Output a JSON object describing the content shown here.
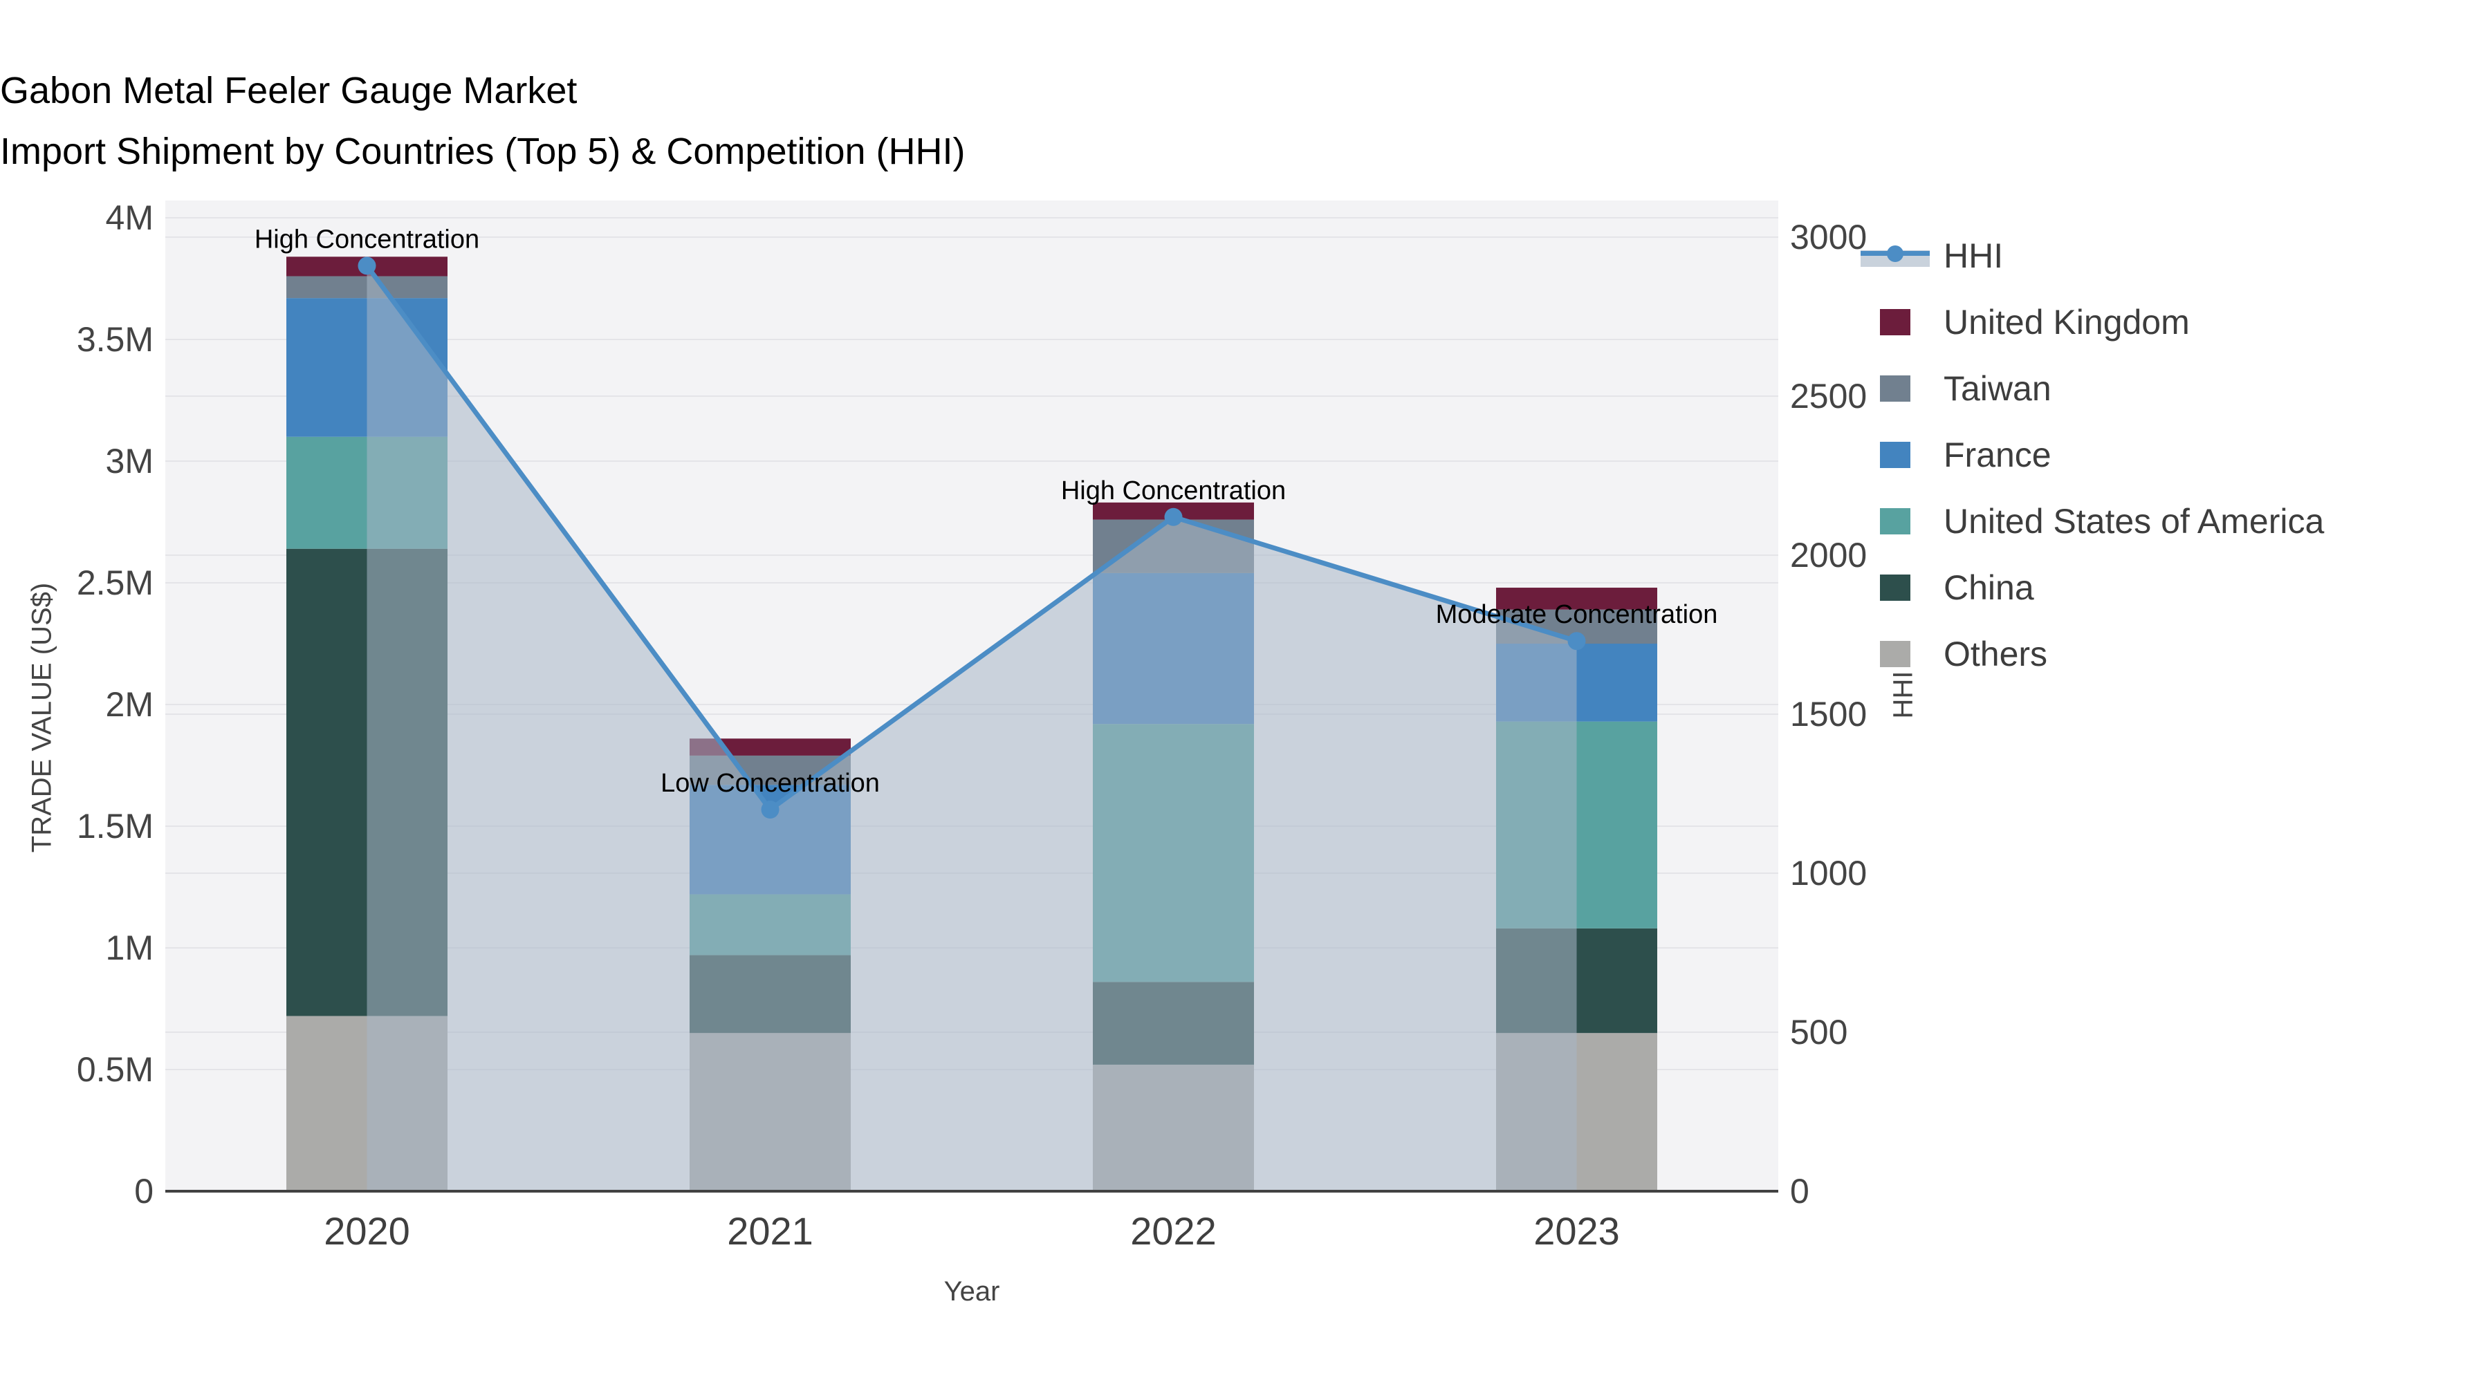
{
  "title": "Gabon Metal Feeler Gauge Market",
  "subtitle": "Import Shipment by Countries (Top 5) & Competition (HHI)",
  "axes": {
    "x_title": "Year",
    "y_left_title": "TRADE VALUE (US$)",
    "y_right_title": "HHI",
    "y_left_tick_labels": [
      "0",
      "0.5M",
      "1M",
      "1.5M",
      "2M",
      "2.5M",
      "3M",
      "3.5M",
      "4M"
    ],
    "y_left_tick_values_musd": [
      0,
      0.5,
      1,
      1.5,
      2,
      2.5,
      3,
      3.5,
      4
    ],
    "y_right_tick_labels": [
      "0",
      "500",
      "1000",
      "1500",
      "2000",
      "2500",
      "3000"
    ],
    "y_right_tick_values": [
      0,
      500,
      1000,
      1500,
      2000,
      2500,
      3000
    ]
  },
  "chart_data": {
    "type": "combo: stacked-bar + line(area)",
    "categories": [
      "2020",
      "2021",
      "2022",
      "2023"
    ],
    "unit": "million US$",
    "series": [
      {
        "name": "Others",
        "color": "#ABABA9",
        "values": [
          0.72,
          0.65,
          0.52,
          0.65
        ]
      },
      {
        "name": "China",
        "color": "#2D4F4C",
        "values": [
          1.92,
          0.32,
          0.34,
          0.43
        ]
      },
      {
        "name": "United States of America",
        "color": "#58A2A0",
        "values": [
          0.46,
          0.25,
          1.06,
          0.85
        ]
      },
      {
        "name": "France",
        "color": "#4384BF",
        "values": [
          0.57,
          0.45,
          0.62,
          0.32
        ]
      },
      {
        "name": "Taiwan",
        "color": "#71808F",
        "values": [
          0.09,
          0.12,
          0.22,
          0.14
        ]
      },
      {
        "name": "United Kingdom",
        "color": "#6C1D3C",
        "values": [
          0.08,
          0.07,
          0.07,
          0.09
        ]
      }
    ],
    "line_series": {
      "name": "HHI",
      "color": "#4C8DC5",
      "area_fill": "rgba(167,182,198,0.55)",
      "values": [
        2910,
        1200,
        2120,
        1730
      ]
    },
    "annotations": [
      {
        "category": "2020",
        "text": "High Concentration"
      },
      {
        "category": "2021",
        "text": "Low Concentration"
      },
      {
        "category": "2022",
        "text": "High Concentration"
      },
      {
        "category": "2023",
        "text": "Moderate Concentration"
      }
    ],
    "y_left_range_musd": [
      0,
      4.07
    ],
    "y_right_range": [
      0,
      3115
    ],
    "grid": true,
    "legend_position": "right",
    "plot_bg": "#f3f3f5",
    "grid_color": "#e4e4e8",
    "axis_line_color": "#424242",
    "tick_color": "#444444"
  },
  "legend": {
    "items": [
      {
        "label": "HHI",
        "type": "line"
      },
      {
        "label": "United Kingdom",
        "type": "swatch",
        "color": "#6C1D3C"
      },
      {
        "label": "Taiwan",
        "type": "swatch",
        "color": "#71808F"
      },
      {
        "label": "France",
        "type": "swatch",
        "color": "#4384BF"
      },
      {
        "label": "United States of America",
        "type": "swatch",
        "color": "#58A2A0"
      },
      {
        "label": "China",
        "type": "swatch",
        "color": "#2D4F4C"
      },
      {
        "label": "Others",
        "type": "swatch",
        "color": "#ABABA9"
      }
    ]
  }
}
